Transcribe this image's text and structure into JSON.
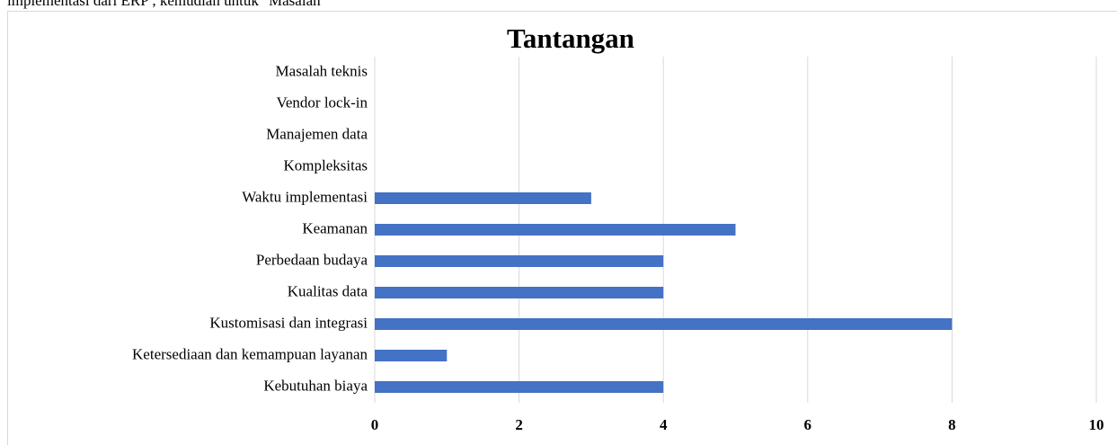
{
  "header_text": "implementasi dari ERP , kemudian untuk \"Masalah\"",
  "chart_data": {
    "type": "barh",
    "title": "Tantangan",
    "categories": [
      "Masalah teknis",
      "Vendor lock-in",
      "Manajemen data",
      "Kompleksitas",
      "Waktu implementasi ",
      "Keamanan",
      "Perbedaan budaya",
      "Kualitas data",
      "Kustomisasi dan integrasi",
      "Ketersediaan dan kemampuan layanan",
      "Kebutuhan biaya"
    ],
    "values": [
      0,
      0,
      0,
      0,
      3,
      5,
      4,
      4,
      8,
      1,
      4
    ],
    "color": "#4472c4",
    "xlim": [
      0,
      10
    ],
    "xticks": [
      0,
      2,
      4,
      6,
      8,
      10
    ],
    "grid": true
  }
}
